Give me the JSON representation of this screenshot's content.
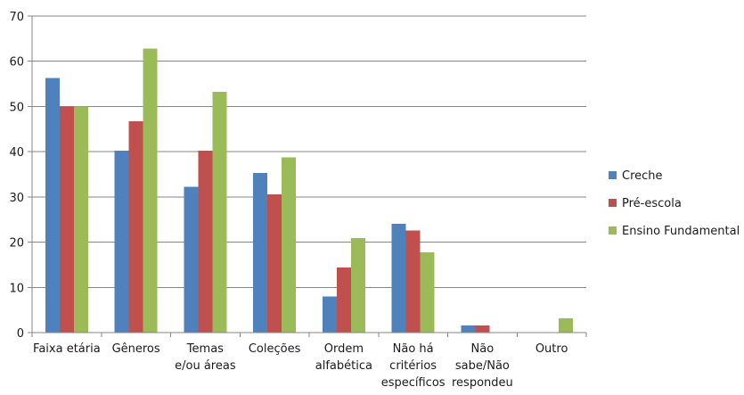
{
  "chart_data": {
    "type": "bar",
    "categories": [
      [
        "Faixa etária"
      ],
      [
        "Gêneros"
      ],
      [
        "Temas",
        "e/ou áreas"
      ],
      [
        "Coleções"
      ],
      [
        "Ordem",
        "alfabética"
      ],
      [
        "Não há",
        "critérios",
        "específicos"
      ],
      [
        "Não",
        "sabe/Não",
        "respondeu"
      ],
      [
        "Outro"
      ]
    ],
    "series": [
      {
        "name": "Creche",
        "color": "#4F81BD",
        "values": [
          56.3,
          40.2,
          32.2,
          35.3,
          8.0,
          24.1,
          1.6,
          0
        ]
      },
      {
        "name": "Pré-escola",
        "color": "#C0504D",
        "values": [
          50.0,
          46.7,
          40.2,
          30.6,
          14.4,
          22.6,
          1.6,
          0
        ]
      },
      {
        "name": "Ensino Fundamental",
        "color": "#9BBB59",
        "values": [
          50.0,
          62.8,
          53.2,
          38.7,
          20.9,
          17.7,
          0,
          3.2
        ]
      }
    ],
    "ylim": [
      0,
      70
    ],
    "yticks": [
      0,
      10,
      20,
      30,
      40,
      50,
      60,
      70
    ],
    "grid": true,
    "legend_position": "right",
    "title": "",
    "xlabel": "",
    "ylabel": ""
  }
}
